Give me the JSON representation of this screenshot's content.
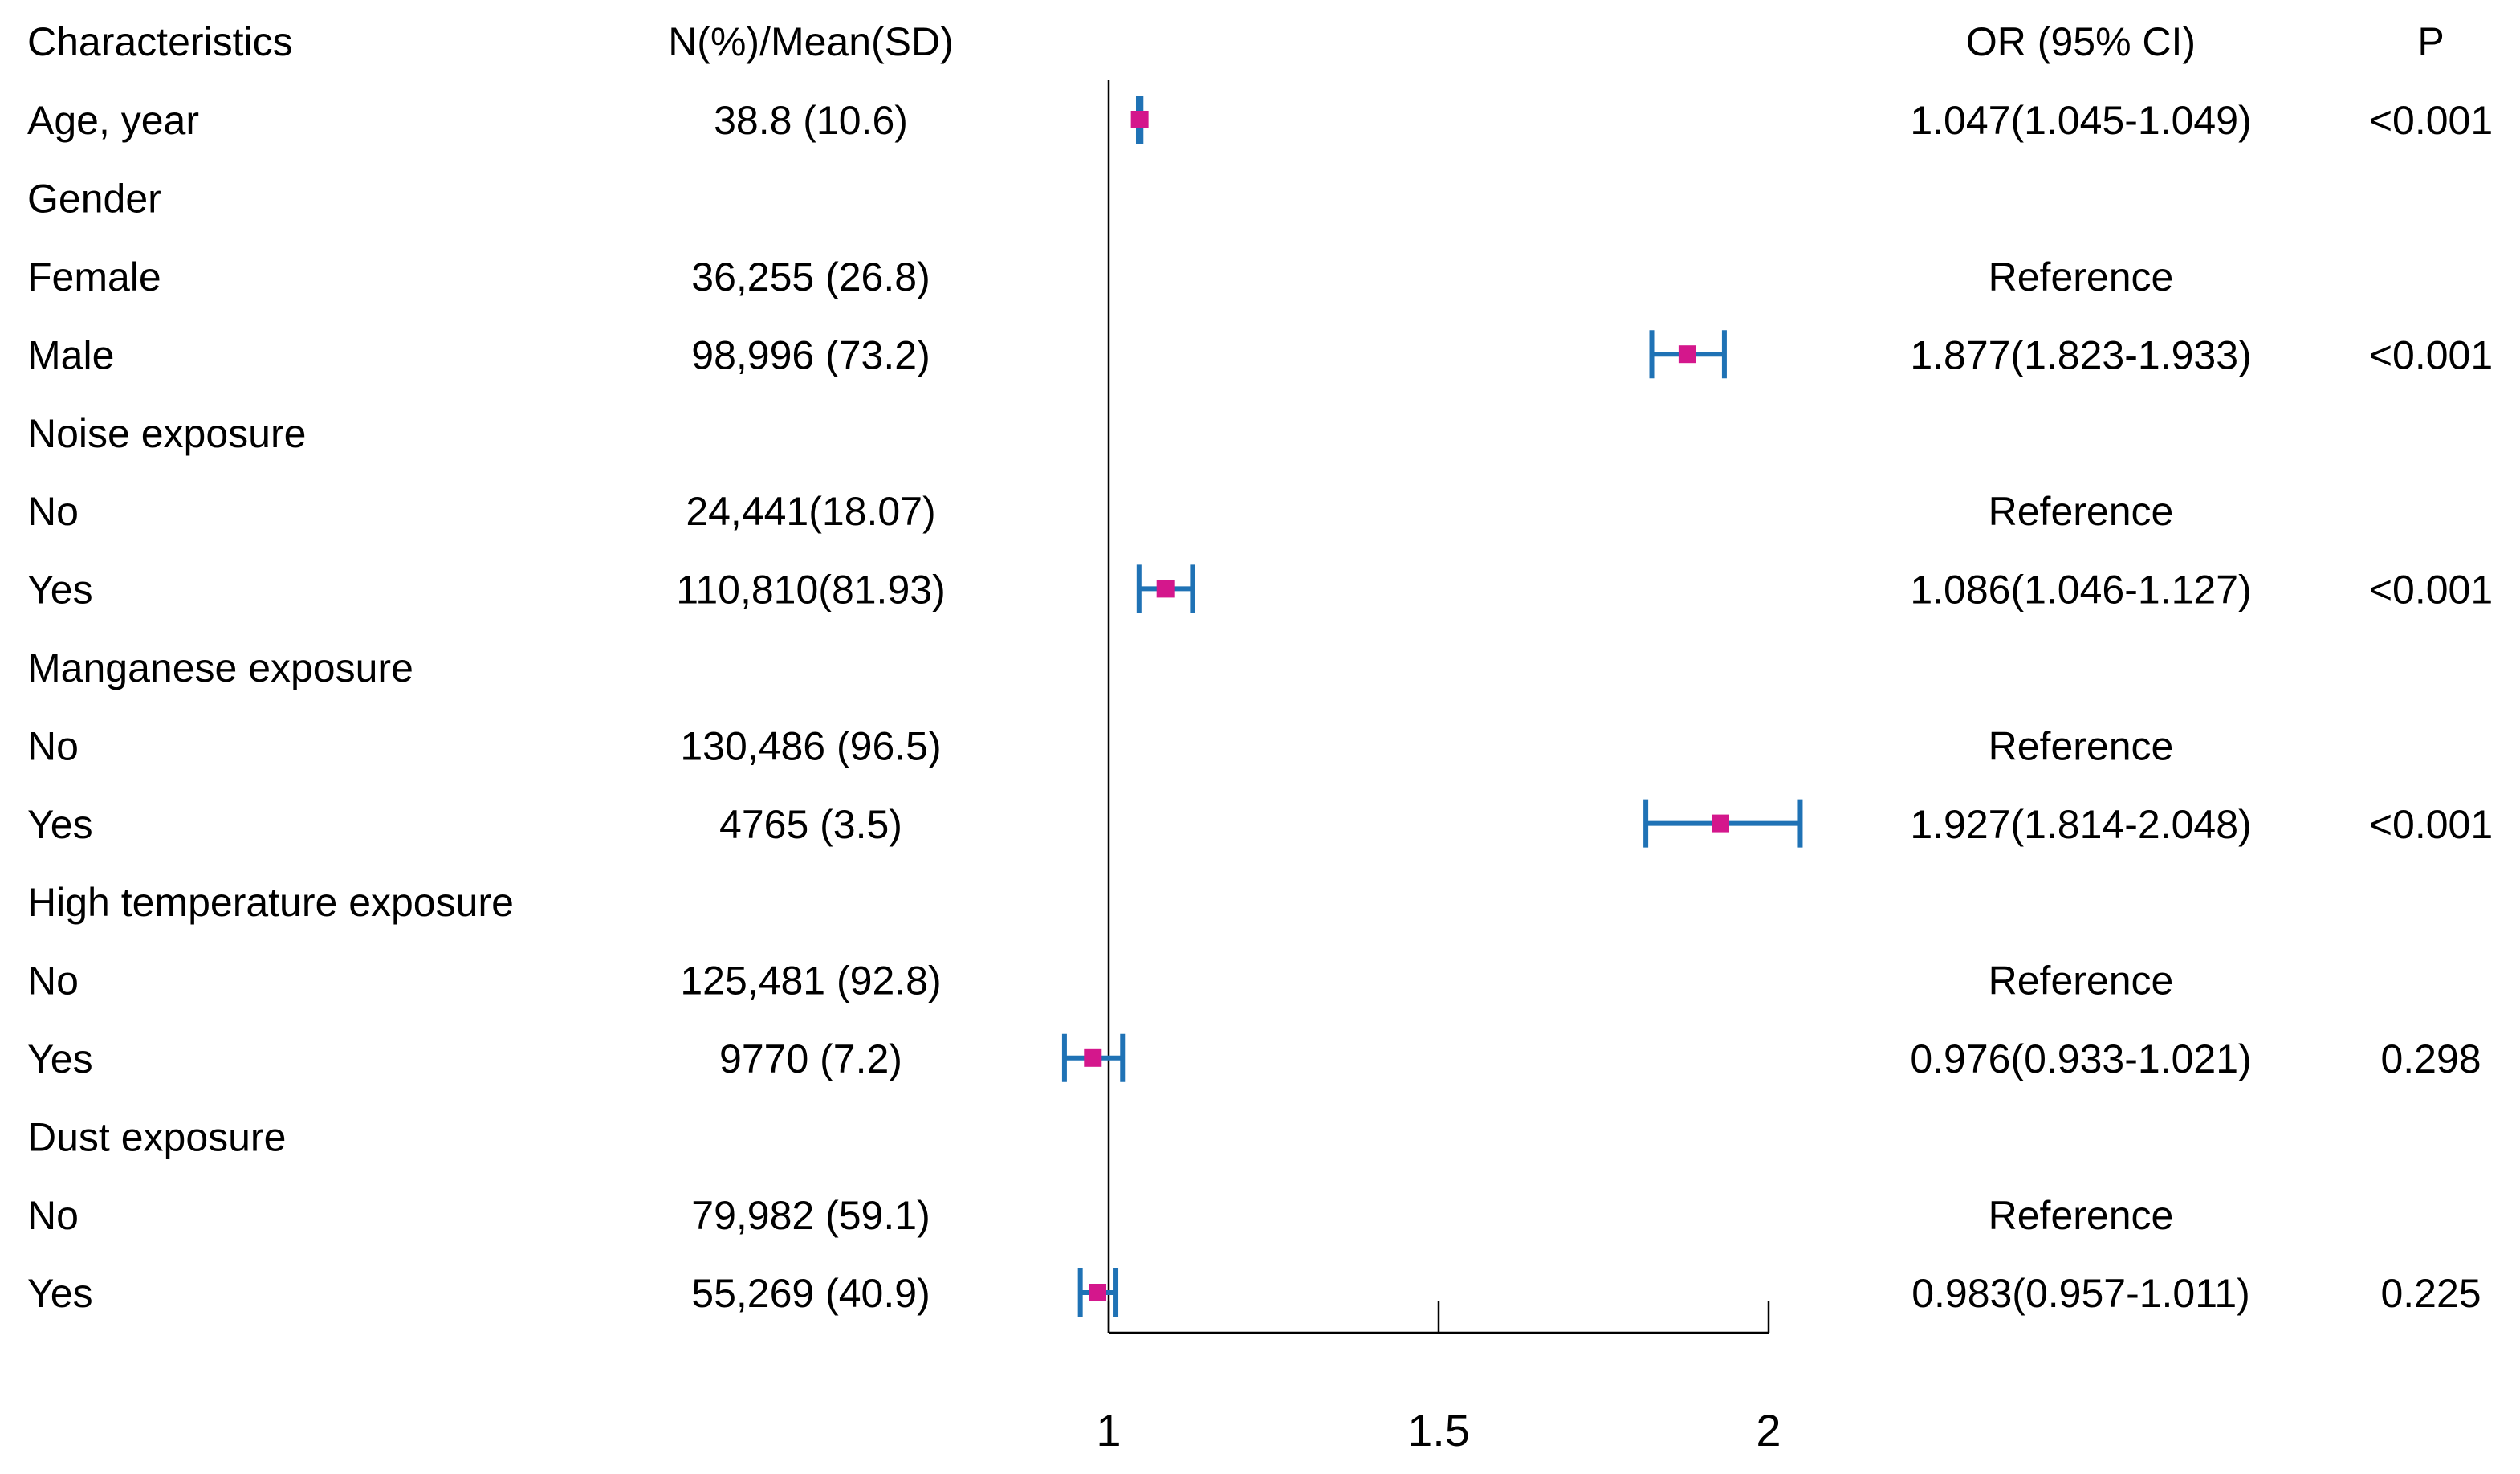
{
  "chart_data": {
    "type": "forest",
    "headers": {
      "label": "Characteristics",
      "n": "N(%)/Mean(SD)",
      "ci": "OR (95% CI)",
      "p": "P"
    },
    "ref": 1,
    "xlim": [
      1,
      2
    ],
    "xticks": [
      1,
      1.5,
      2
    ],
    "marker_color": "#d4178c",
    "ci_color": "#1f72b5",
    "rows": [
      {
        "label": "Age, year",
        "n": "38.8 (10.6)",
        "or": 1.047,
        "lower": 1.045,
        "upper": 1.049,
        "ci_label": "1.047(1.045-1.049)",
        "p": "<0.001"
      },
      {
        "label": "Gender",
        "n": null,
        "or": null,
        "lower": null,
        "upper": null,
        "ci_label": null,
        "p": null
      },
      {
        "label": "Female",
        "n": "36,255 (26.8)",
        "or": null,
        "lower": null,
        "upper": null,
        "ci_label": "Reference",
        "p": null
      },
      {
        "label": "Male",
        "n": "98,996 (73.2)",
        "or": 1.877,
        "lower": 1.823,
        "upper": 1.933,
        "ci_label": "1.877(1.823-1.933)",
        "p": "<0.001"
      },
      {
        "label": "Noise exposure",
        "n": null,
        "or": null,
        "lower": null,
        "upper": null,
        "ci_label": null,
        "p": null
      },
      {
        "label": "No",
        "n": "24,441(18.07)",
        "or": null,
        "lower": null,
        "upper": null,
        "ci_label": "Reference",
        "p": null
      },
      {
        "label": "Yes",
        "n": "110,810(81.93)",
        "or": 1.086,
        "lower": 1.046,
        "upper": 1.127,
        "ci_label": "1.086(1.046-1.127)",
        "p": "<0.001"
      },
      {
        "label": "Manganese exposure",
        "n": null,
        "or": null,
        "lower": null,
        "upper": null,
        "ci_label": null,
        "p": null
      },
      {
        "label": "No",
        "n": "130,486 (96.5)",
        "or": null,
        "lower": null,
        "upper": null,
        "ci_label": "Reference",
        "p": null
      },
      {
        "label": "Yes",
        "n": "4765 (3.5)",
        "or": 1.927,
        "lower": 1.814,
        "upper": 2.048,
        "ci_label": "1.927(1.814-2.048)",
        "p": "<0.001"
      },
      {
        "label": "High temperature exposure",
        "n": null,
        "or": null,
        "lower": null,
        "upper": null,
        "ci_label": null,
        "p": null
      },
      {
        "label": "No",
        "n": "125,481 (92.8)",
        "or": null,
        "lower": null,
        "upper": null,
        "ci_label": "Reference",
        "p": null
      },
      {
        "label": "Yes",
        "n": "9770 (7.2)",
        "or": 0.976,
        "lower": 0.933,
        "upper": 1.021,
        "ci_label": "0.976(0.933-1.021)",
        "p": "0.298"
      },
      {
        "label": "Dust exposure",
        "n": null,
        "or": null,
        "lower": null,
        "upper": null,
        "ci_label": null,
        "p": null
      },
      {
        "label": "No",
        "n": "79,982 (59.1)",
        "or": null,
        "lower": null,
        "upper": null,
        "ci_label": "Reference",
        "p": null
      },
      {
        "label": "Yes",
        "n": "55,269 (40.9)",
        "or": 0.983,
        "lower": 0.957,
        "upper": 1.011,
        "ci_label": "0.983(0.957-1.011)",
        "p": "0.225"
      }
    ]
  }
}
